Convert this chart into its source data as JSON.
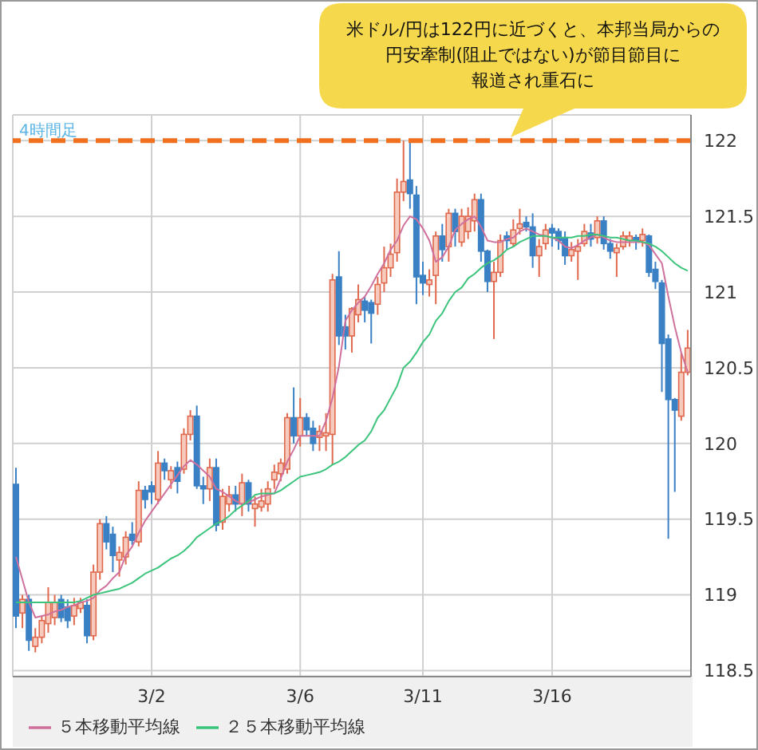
{
  "chart_data": {
    "type": "candlestick",
    "subtitle": "4時間足",
    "annotations": [
      "米ドル/円は122円に近づくと、本邦当局からの",
      "円安牽制(阻止ではない)が節目節目に",
      "報道され重石に"
    ],
    "categories": [
      null,
      null,
      null,
      null,
      null,
      null,
      null,
      null,
      null,
      null,
      null,
      null,
      null,
      null,
      null,
      null,
      null,
      null,
      null,
      null,
      null,
      "3/2",
      null,
      null,
      null,
      null,
      null,
      null,
      null,
      null,
      null,
      null,
      null,
      null,
      null,
      null,
      null,
      null,
      null,
      null,
      null,
      null,
      null,
      null,
      "3/6",
      null,
      null,
      null,
      null,
      null,
      null,
      null,
      null,
      null,
      null,
      null,
      null,
      null,
      null,
      null,
      null,
      null,
      null,
      "3/11",
      null,
      null,
      null,
      null,
      null,
      null,
      null,
      null,
      null,
      null,
      null,
      null,
      null,
      null,
      null,
      null,
      null,
      null,
      null,
      "3/16",
      null,
      null,
      null,
      null,
      null,
      null,
      null,
      null,
      null,
      null,
      null,
      null,
      null,
      null,
      null,
      null,
      null,
      null,
      null,
      null,
      null
    ],
    "ohlc": [
      [
        119.73,
        119.84,
        118.78,
        118.86
      ],
      [
        118.88,
        119.0,
        118.78,
        118.97
      ],
      [
        118.97,
        119.0,
        118.63,
        118.7
      ],
      [
        118.66,
        118.78,
        118.62,
        118.72
      ],
      [
        118.72,
        118.86,
        118.68,
        118.83
      ],
      [
        118.81,
        119.05,
        118.75,
        118.95
      ],
      [
        118.85,
        119.0,
        118.8,
        118.95
      ],
      [
        118.97,
        119.0,
        118.82,
        118.85
      ],
      [
        118.92,
        118.97,
        118.78,
        118.83
      ],
      [
        118.86,
        118.98,
        118.8,
        118.93
      ],
      [
        118.91,
        118.98,
        118.88,
        118.95
      ],
      [
        118.93,
        118.97,
        118.68,
        118.73
      ],
      [
        118.73,
        119.2,
        118.7,
        119.15
      ],
      [
        119.15,
        119.5,
        119.1,
        119.47
      ],
      [
        119.47,
        119.52,
        119.3,
        119.35
      ],
      [
        119.4,
        119.45,
        119.15,
        119.26
      ],
      [
        119.23,
        119.32,
        119.12,
        119.28
      ],
      [
        119.25,
        119.42,
        119.2,
        119.38
      ],
      [
        119.4,
        119.48,
        119.33,
        119.36
      ],
      [
        119.35,
        119.75,
        119.32,
        119.69
      ],
      [
        119.69,
        119.72,
        119.57,
        119.63
      ],
      [
        119.72,
        119.75,
        119.6,
        119.68
      ],
      [
        119.63,
        119.95,
        119.6,
        119.87
      ],
      [
        119.87,
        119.9,
        119.76,
        119.82
      ],
      [
        119.76,
        119.85,
        119.7,
        119.82
      ],
      [
        119.84,
        119.88,
        119.67,
        119.75
      ],
      [
        119.83,
        120.1,
        119.8,
        120.06
      ],
      [
        120.06,
        120.22,
        120.02,
        120.18
      ],
      [
        120.18,
        120.25,
        119.7,
        119.72
      ],
      [
        119.72,
        119.78,
        119.6,
        119.7
      ],
      [
        119.7,
        119.9,
        119.62,
        119.84
      ],
      [
        119.84,
        119.9,
        119.42,
        119.46
      ],
      [
        119.48,
        119.7,
        119.43,
        119.65
      ],
      [
        119.6,
        119.72,
        119.55,
        119.66
      ],
      [
        119.66,
        119.72,
        119.55,
        119.6
      ],
      [
        119.6,
        119.8,
        119.52,
        119.74
      ],
      [
        119.74,
        119.76,
        119.55,
        119.6
      ],
      [
        119.57,
        119.65,
        119.45,
        119.6
      ],
      [
        119.58,
        119.7,
        119.55,
        119.62
      ],
      [
        119.6,
        119.75,
        119.55,
        119.7
      ],
      [
        119.76,
        119.86,
        119.7,
        119.81
      ],
      [
        119.8,
        119.9,
        119.75,
        119.87
      ],
      [
        119.83,
        120.2,
        119.8,
        120.17
      ],
      [
        120.17,
        120.37,
        120.0,
        120.05
      ],
      [
        120.05,
        120.3,
        119.98,
        120.17
      ],
      [
        120.17,
        120.2,
        120.05,
        120.09
      ],
      [
        120.1,
        120.15,
        119.95,
        120.0
      ],
      [
        120.04,
        120.12,
        119.95,
        120.08
      ],
      [
        120.05,
        120.2,
        119.95,
        120.07
      ],
      [
        120.06,
        121.12,
        119.86,
        121.08
      ],
      [
        121.1,
        121.27,
        120.65,
        120.71
      ],
      [
        120.77,
        120.85,
        120.62,
        120.71
      ],
      [
        120.71,
        120.9,
        120.6,
        120.89
      ],
      [
        120.85,
        121.05,
        120.8,
        120.95
      ],
      [
        120.94,
        120.97,
        120.8,
        120.88
      ],
      [
        120.93,
        120.95,
        120.66,
        120.86
      ],
      [
        120.92,
        121.1,
        120.85,
        121.05
      ],
      [
        121.06,
        121.3,
        121.0,
        121.16
      ],
      [
        121.16,
        121.32,
        121.1,
        121.25
      ],
      [
        121.26,
        121.75,
        121.2,
        121.66
      ],
      [
        121.66,
        122.0,
        121.6,
        121.73
      ],
      [
        121.74,
        122.0,
        121.55,
        121.65
      ],
      [
        121.64,
        121.7,
        120.92,
        121.1
      ],
      [
        121.11,
        121.2,
        120.98,
        121.06
      ],
      [
        121.05,
        121.15,
        120.97,
        121.08
      ],
      [
        121.11,
        121.4,
        120.92,
        121.37
      ],
      [
        121.37,
        121.45,
        121.2,
        121.28
      ],
      [
        121.3,
        121.55,
        121.2,
        121.52
      ],
      [
        121.52,
        121.55,
        121.3,
        121.4
      ],
      [
        121.33,
        121.55,
        121.3,
        121.5
      ],
      [
        121.4,
        121.56,
        121.35,
        121.5
      ],
      [
        121.47,
        121.65,
        121.4,
        121.61
      ],
      [
        121.61,
        121.65,
        121.2,
        121.27
      ],
      [
        121.27,
        121.28,
        121.0,
        121.07
      ],
      [
        121.07,
        121.2,
        120.69,
        121.13
      ],
      [
        121.13,
        121.38,
        121.1,
        121.34
      ],
      [
        121.37,
        121.4,
        121.28,
        121.34
      ],
      [
        121.32,
        121.48,
        121.3,
        121.41
      ],
      [
        121.42,
        121.55,
        121.38,
        121.45
      ],
      [
        121.46,
        121.5,
        121.4,
        121.43
      ],
      [
        121.43,
        121.52,
        121.16,
        121.24
      ],
      [
        121.24,
        121.35,
        121.1,
        121.3
      ],
      [
        121.32,
        121.45,
        121.28,
        121.41
      ],
      [
        121.42,
        121.45,
        121.3,
        121.39
      ],
      [
        121.4,
        121.42,
        121.28,
        121.34
      ],
      [
        121.36,
        121.4,
        121.18,
        121.24
      ],
      [
        121.24,
        121.33,
        121.2,
        121.28
      ],
      [
        121.27,
        121.35,
        121.08,
        121.3
      ],
      [
        121.32,
        121.45,
        121.3,
        121.4
      ],
      [
        121.39,
        121.45,
        121.3,
        121.35
      ],
      [
        121.36,
        121.5,
        121.32,
        121.47
      ],
      [
        121.47,
        121.5,
        121.28,
        121.32
      ],
      [
        121.32,
        121.35,
        121.22,
        121.27
      ],
      [
        121.26,
        121.32,
        121.1,
        121.29
      ],
      [
        121.3,
        121.4,
        121.28,
        121.37
      ],
      [
        121.34,
        121.4,
        121.3,
        121.37
      ],
      [
        121.36,
        121.38,
        121.28,
        121.34
      ],
      [
        121.34,
        121.42,
        121.3,
        121.38
      ],
      [
        121.37,
        121.38,
        121.1,
        121.13
      ],
      [
        121.15,
        121.2,
        121.02,
        121.07
      ],
      [
        121.06,
        121.08,
        120.34,
        120.66
      ],
      [
        120.69,
        120.72,
        119.37,
        120.29
      ],
      [
        120.29,
        120.3,
        119.68,
        120.22
      ],
      [
        120.18,
        120.6,
        120.15,
        120.47
      ],
      [
        120.47,
        120.75,
        120.45,
        120.63
      ]
    ],
    "series": [
      {
        "name": "５本移動平均線",
        "type": "line",
        "color": "#d0709c",
        "values": [
          119.25,
          119.1,
          118.95,
          118.85,
          118.86,
          118.87,
          118.89,
          118.9,
          118.92,
          118.93,
          118.95,
          118.96,
          118.98,
          119.03,
          119.06,
          119.11,
          119.15,
          119.26,
          119.32,
          119.41,
          119.49,
          119.55,
          119.61,
          119.67,
          119.73,
          119.79,
          119.85,
          119.89,
          119.86,
          119.82,
          119.78,
          119.7,
          119.68,
          119.65,
          119.62,
          119.6,
          119.61,
          119.63,
          119.65,
          119.66,
          119.67,
          119.77,
          119.88,
          119.96,
          120.05,
          120.05,
          120.05,
          120.05,
          120.15,
          120.3,
          120.51,
          120.81,
          120.88,
          120.93,
          120.97,
          121.04,
          121.12,
          121.19,
          121.28,
          121.34,
          121.44,
          121.5,
          121.48,
          121.42,
          121.34,
          121.2,
          121.23,
          121.3,
          121.41,
          121.45,
          121.48,
          121.5,
          121.43,
          121.34,
          121.33,
          121.33,
          121.35,
          121.36,
          121.4,
          121.42,
          121.4,
          121.38,
          121.37,
          121.36,
          121.34,
          121.3,
          121.29,
          121.31,
          121.34,
          121.36,
          121.38,
          121.36,
          121.34,
          121.33,
          121.33,
          121.33,
          121.33,
          121.33,
          121.31,
          121.25,
          121.19,
          120.97,
          120.77,
          120.6,
          120.47
        ]
      },
      {
        "name": "２５本移動平均線",
        "type": "line",
        "color": "#3cc47c",
        "values": [
          118.95,
          118.95,
          118.95,
          118.95,
          118.95,
          118.95,
          118.95,
          118.95,
          118.95,
          118.95,
          118.96,
          118.98,
          119.0,
          119.01,
          119.02,
          119.03,
          119.04,
          119.06,
          119.08,
          119.11,
          119.14,
          119.16,
          119.18,
          119.21,
          119.24,
          119.26,
          119.29,
          119.33,
          119.38,
          119.41,
          119.44,
          119.47,
          119.49,
          119.52,
          119.56,
          119.59,
          119.62,
          119.66,
          119.67,
          119.67,
          119.67,
          119.69,
          119.72,
          119.75,
          119.78,
          119.79,
          119.8,
          119.81,
          119.83,
          119.86,
          119.88,
          119.91,
          119.95,
          119.99,
          120.02,
          120.08,
          120.17,
          120.22,
          120.3,
          120.38,
          120.5,
          120.54,
          120.6,
          120.67,
          120.72,
          120.81,
          120.86,
          120.94,
          121.0,
          121.03,
          121.09,
          121.12,
          121.16,
          121.19,
          121.21,
          121.24,
          121.28,
          121.3,
          121.33,
          121.35,
          121.37,
          121.37,
          121.37,
          121.36,
          121.36,
          121.36,
          121.36,
          121.37,
          121.37,
          121.38,
          121.38,
          121.37,
          121.36,
          121.36,
          121.35,
          121.34,
          121.34,
          121.33,
          121.32,
          121.3,
          121.27,
          121.23,
          121.19,
          121.16,
          121.14
        ]
      }
    ],
    "ylim": [
      118.46,
      122.17
    ],
    "yticks": [
      118.5,
      119,
      119.5,
      120,
      120.5,
      121,
      121.5,
      122
    ],
    "ref_lines": [
      {
        "axis": "y",
        "value": 122,
        "color": "#f07020",
        "line_style": "dashed"
      }
    ],
    "grid": true,
    "legend": "bottom"
  }
}
